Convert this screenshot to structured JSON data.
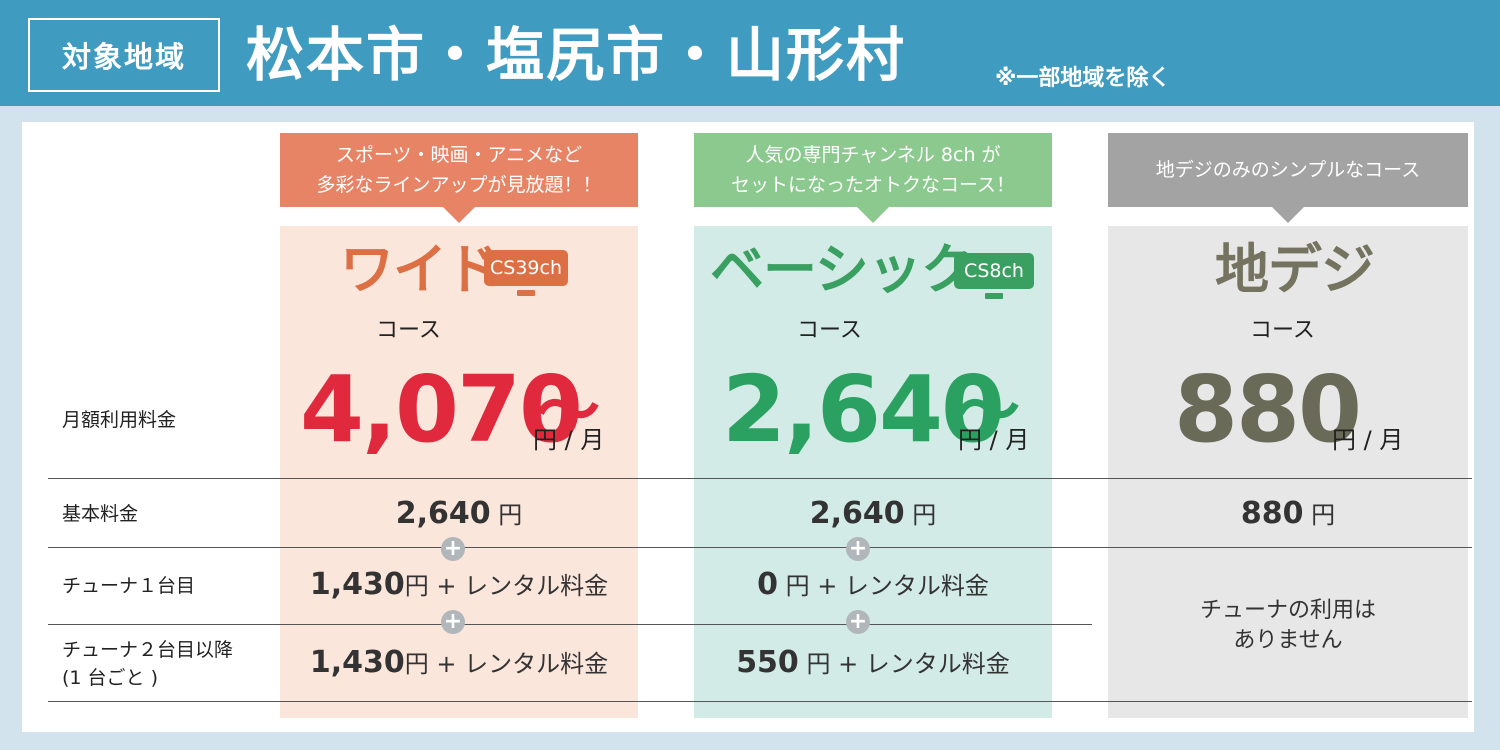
{
  "header": {
    "badge": "対象地域",
    "title": "松本市・塩尻市・山形村",
    "note": "※一部地域を除く"
  },
  "colors": {
    "header_bg": "#3f9bbf",
    "wide": "#e0293d",
    "basic": "#2aa160",
    "digi": "#6a6a58"
  },
  "rows": {
    "monthly": "月額利用料金",
    "base": "基本料金",
    "tuner1": "チューナ１台目",
    "tuner2_line1": "チューナ２台目以降",
    "tuner2_line2": "(1 台ごと )"
  },
  "courses": {
    "wide": {
      "bubble_line1": "スポーツ・映画・アニメなど",
      "bubble_line2": "多彩なラインアップが見放題！！",
      "name": "ワイド",
      "tv_badge": "CS39ch",
      "course": "コース",
      "price": "4,070",
      "tilde": "〜",
      "unit": "円 / 月",
      "base_num": "2,640",
      "base_unit": "円",
      "t1_num": "1,430",
      "t1_unit": "円 + レンタル料金",
      "t2_num": "1,430",
      "t2_unit": "円 + レンタル料金"
    },
    "basic": {
      "bubble_line1": "人気の専門チャンネル 8ch が",
      "bubble_line2": "セットになったオトクなコース！",
      "name": "ベーシック",
      "tv_badge": "CS8ch",
      "course": "コース",
      "price": "2,640",
      "tilde": "〜",
      "unit": "円 / 月",
      "base_num": "2,640",
      "base_unit": "円",
      "t1_num": "0",
      "t1_unit": " 円 + レンタル料金",
      "t2_num": "550",
      "t2_unit": " 円 + レンタル料金"
    },
    "digi": {
      "bubble": "地デジのみのシンプルなコース",
      "name": "地デジ",
      "course": "コース",
      "price": "880",
      "unit": "円 / 月",
      "base_num": "880",
      "base_unit": "円",
      "no_tuner_line1": "チューナの利用は",
      "no_tuner_line2": "ありません"
    }
  },
  "plus_symbol": "+"
}
